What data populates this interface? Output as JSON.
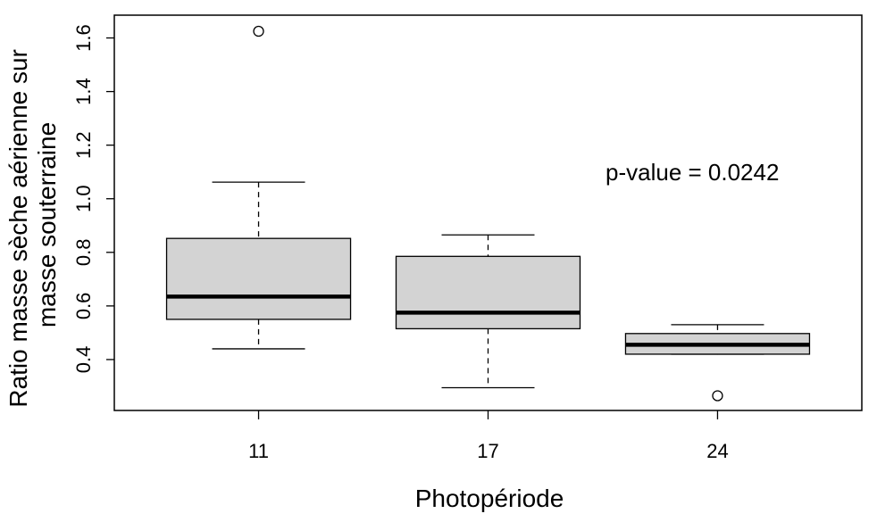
{
  "chart_data": {
    "type": "boxplot",
    "xlabel": "Photopériode",
    "ylabel_lines": [
      "Ratio masse sèche aérienne sur",
      "masse souterraine"
    ],
    "categories": [
      "11",
      "17",
      "24"
    ],
    "yticks": [
      "0.4",
      "0.6",
      "0.8",
      "1.0",
      "1.2",
      "1.4",
      "1.6"
    ],
    "ylim": [
      0.21,
      1.685
    ],
    "grid": false,
    "colors": {
      "box_fill": "#d3d3d3",
      "stroke": "#000000"
    },
    "series": [
      {
        "category": "11",
        "whisker_low": 0.44,
        "q1": 0.55,
        "median": 0.635,
        "q3": 0.852,
        "whisker_high": 1.062,
        "outliers": [
          1.625
        ]
      },
      {
        "category": "17",
        "whisker_low": 0.295,
        "q1": 0.515,
        "median": 0.575,
        "q3": 0.785,
        "whisker_high": 0.865,
        "outliers": []
      },
      {
        "category": "24",
        "whisker_low": 0.42,
        "q1": 0.42,
        "median": 0.455,
        "q3": 0.497,
        "whisker_high": 0.53,
        "outliers": [
          0.265
        ]
      }
    ],
    "annotation": "p-value = 0.0242"
  }
}
